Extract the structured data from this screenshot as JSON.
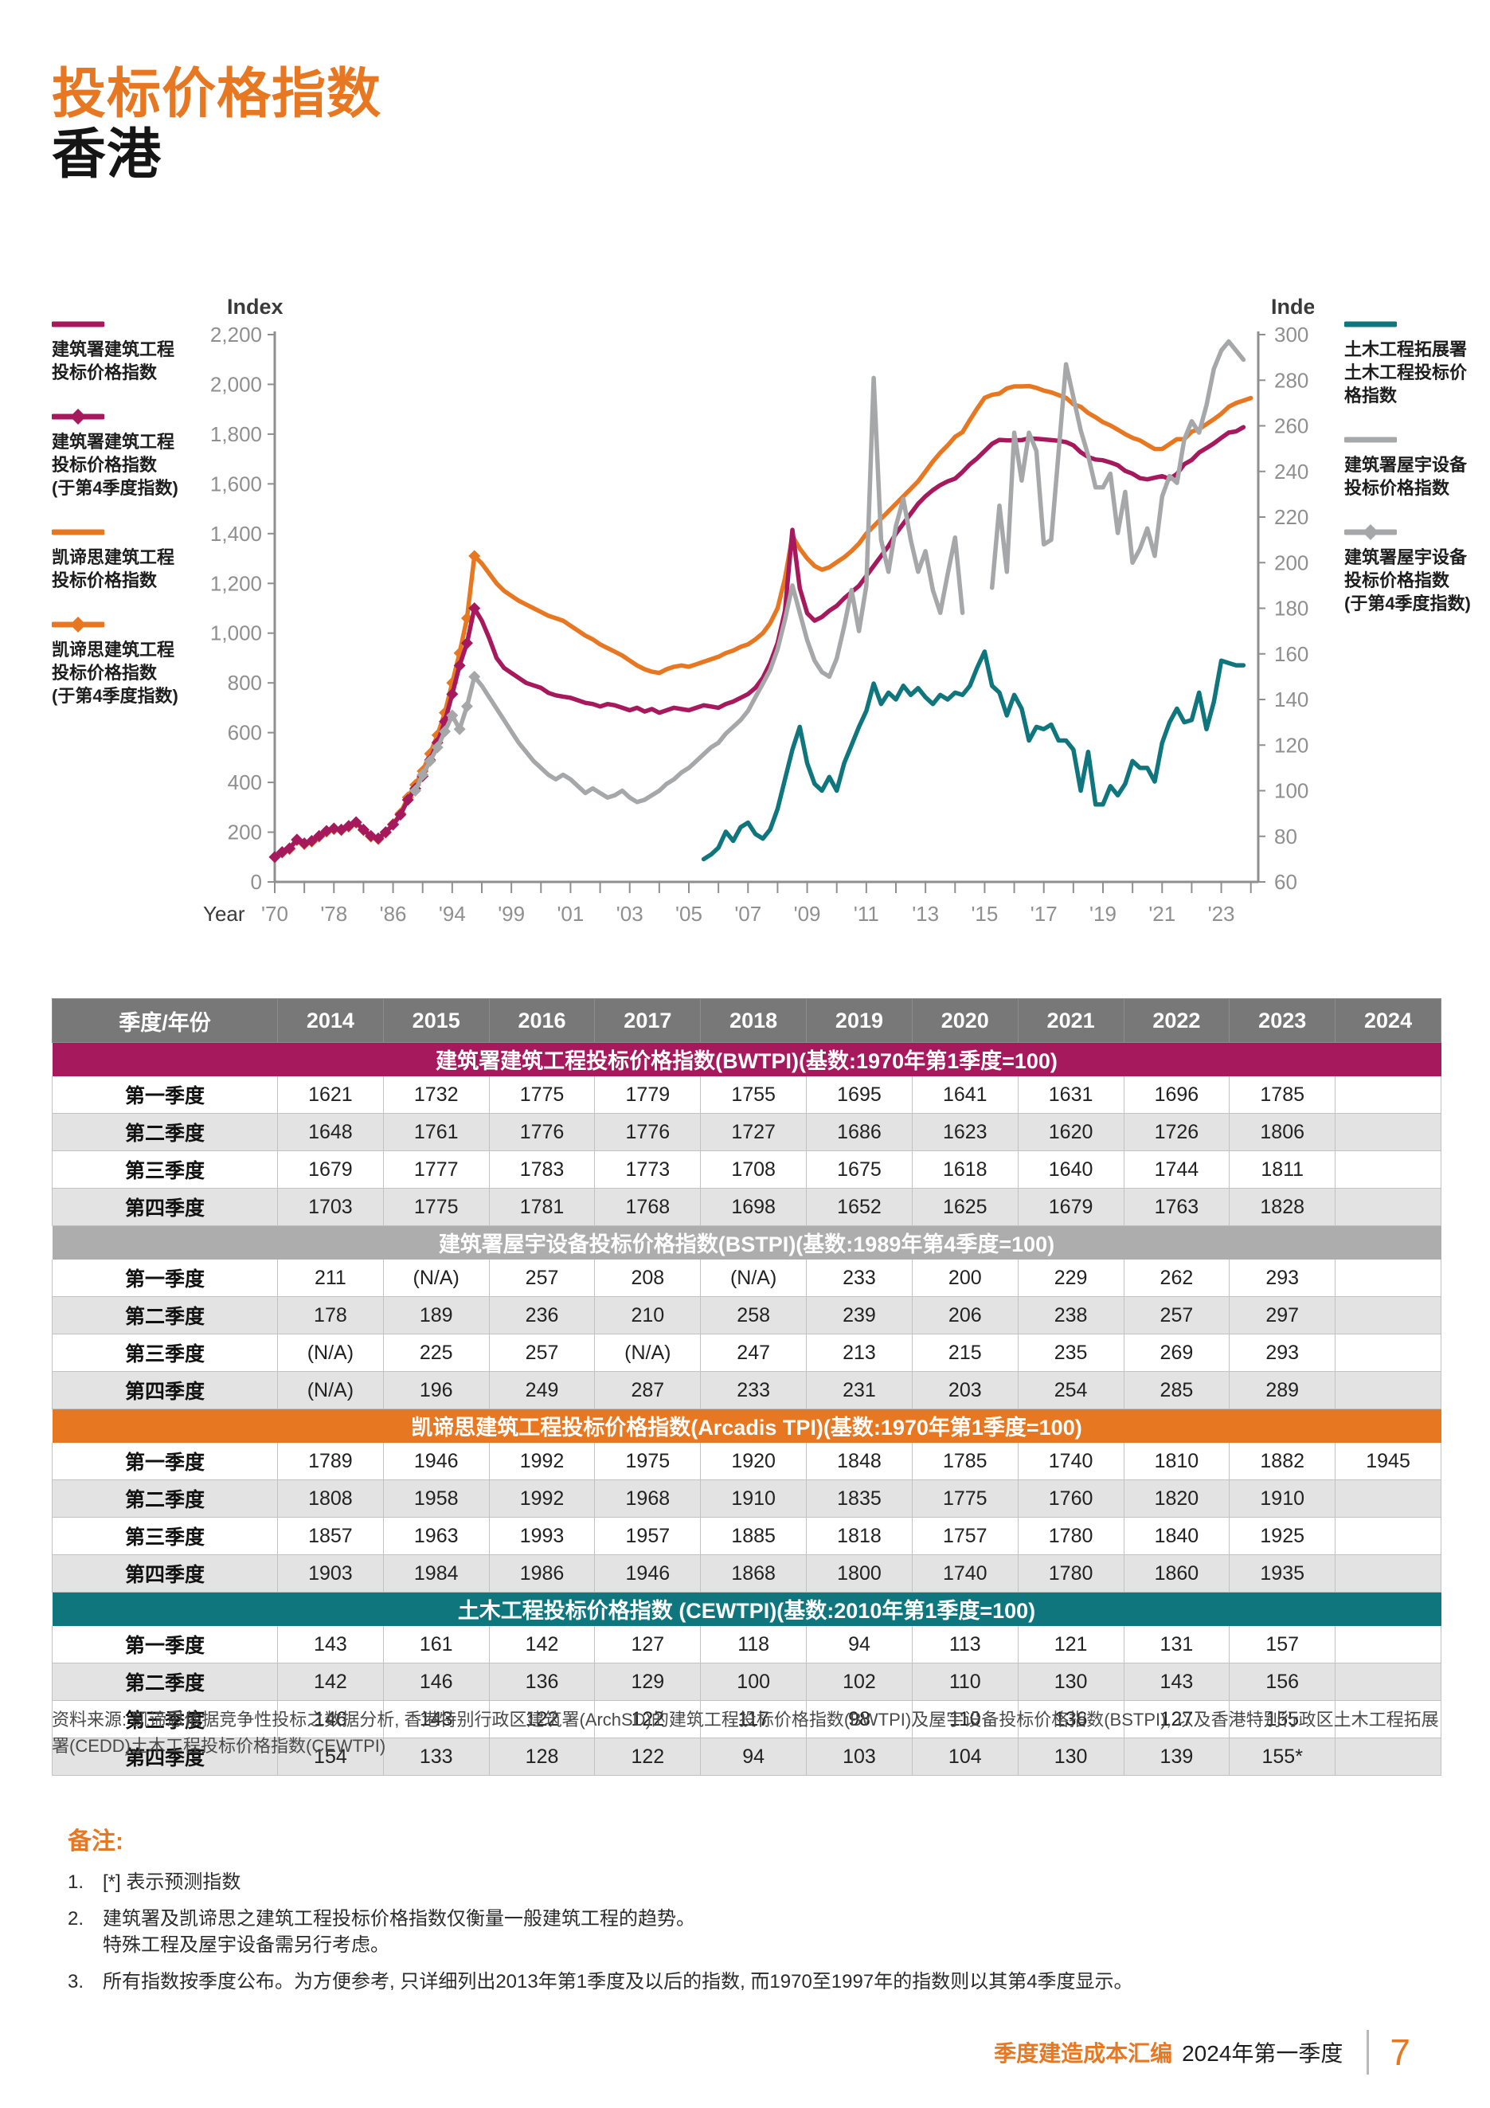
{
  "page": {
    "title_line1": "投标价格指数",
    "title_line2": "香港",
    "footer": {
      "brand": "季度建造成本汇编",
      "edition": "2024年第一季度",
      "page_number": "7"
    }
  },
  "colors": {
    "orange": "#E87722",
    "magenta": "#A6195D",
    "gray": "#A6A7A9",
    "teal": "#0E767C",
    "header_gray": "#787878",
    "band_gray": "#ADADAD",
    "axis_text": "#8F8F8F"
  },
  "chart": {
    "left_axis": {
      "label": "Index",
      "min": 0,
      "max": 2200,
      "step": 200
    },
    "right_axis": {
      "label": "Index",
      "min": 60,
      "max": 300,
      "step": 20
    },
    "x_axis": {
      "label": "Year",
      "tick_labels": [
        "'70",
        "'78",
        "'86",
        "'94",
        "'99",
        "'01",
        "'03",
        "'05",
        "'07",
        "'09",
        "'11",
        "'13",
        "'15",
        "'17",
        "'19",
        "'21",
        "'23"
      ]
    },
    "legend_left": [
      {
        "label": "建筑署建筑工程\n投标价格指数",
        "color": "#A6195D",
        "swatch": "line"
      },
      {
        "label": "建筑署建筑工程\n投标价格指数\n(于第4季度指数)",
        "color": "#A6195D",
        "swatch": "line-diamond"
      },
      {
        "label": "凯谛思建筑工程\n投标价格指数",
        "color": "#E87722",
        "swatch": "line"
      },
      {
        "label": "凯谛思建筑工程\n投标价格指数\n(于第4季度指数)",
        "color": "#E87722",
        "swatch": "line-diamond"
      }
    ],
    "legend_right": [
      {
        "label": "土木工程拓展署\n土木工程投标价\n格指数",
        "color": "#0E767C",
        "swatch": "line"
      },
      {
        "label": "建筑署屋宇设备\n投标价格指数",
        "color": "#A6A7A9",
        "swatch": "line"
      },
      {
        "label": "建筑署屋宇设备\n投标价格指数\n(于第4季度指数)",
        "color": "#A6A7A9",
        "swatch": "line-diamond"
      }
    ]
  },
  "chart_data": {
    "type": "line",
    "note": "1970-1997 shown as Q4 annual points (diamond markers), quarterly thereafter",
    "left_axis_range": [
      0,
      2200
    ],
    "right_axis_range": [
      60,
      300
    ],
    "series": [
      {
        "name": "凯谛思建筑工程投标价格指数 (Arcadis TPI)",
        "color": "#E87722",
        "axis": "left",
        "marker": "diamond",
        "annual_q4": {
          "start": 1970,
          "values": [
            100,
            118,
            132,
            168,
            152,
            162,
            182,
            202,
            212,
            208,
            222,
            238,
            208,
            182,
            172,
            198,
            232,
            275,
            340,
            390,
            445,
            515,
            590,
            680,
            800,
            920,
            1060,
            1310
          ]
        },
        "quarterly": {
          "start": 1998,
          "values": [
            1280,
            1240,
            1200,
            1170,
            1150,
            1130,
            1115,
            1100,
            1085,
            1070,
            1060,
            1050,
            1030,
            1010,
            990,
            975,
            955,
            940,
            925,
            910,
            890,
            870,
            855,
            845,
            840,
            855,
            865,
            870,
            865,
            875,
            885,
            895,
            905,
            920,
            930,
            945,
            955,
            975,
            1000,
            1040,
            1100,
            1220,
            1390,
            1340,
            1300,
            1270,
            1255,
            1265,
            1285,
            1305,
            1330,
            1360,
            1400,
            1430,
            1460,
            1490,
            1520,
            1550,
            1580,
            1610,
            1650,
            1690,
            1725,
            1755,
            1789,
            1808,
            1857,
            1903,
            1946,
            1958,
            1963,
            1984,
            1992,
            1992,
            1993,
            1986,
            1975,
            1968,
            1957,
            1946,
            1920,
            1910,
            1885,
            1868,
            1848,
            1835,
            1818,
            1800,
            1785,
            1775,
            1757,
            1740,
            1740,
            1760,
            1780,
            1780,
            1810,
            1820,
            1840,
            1860,
            1882,
            1910,
            1925,
            1935,
            1945
          ]
        }
      },
      {
        "name": "建筑署建筑工程投标价格指数 (BWTPI)",
        "color": "#A6195D",
        "axis": "left",
        "marker": "diamond",
        "annual_q4": {
          "start": 1970,
          "values": [
            100,
            120,
            135,
            170,
            155,
            165,
            185,
            205,
            215,
            210,
            225,
            240,
            210,
            185,
            175,
            200,
            230,
            270,
            330,
            375,
            425,
            490,
            560,
            645,
            755,
            870,
            960,
            1100
          ]
        },
        "quarterly": {
          "start": 1998,
          "values": [
            1050,
            980,
            900,
            860,
            840,
            820,
            800,
            790,
            780,
            760,
            750,
            745,
            740,
            730,
            720,
            715,
            705,
            715,
            710,
            700,
            690,
            700,
            685,
            695,
            680,
            690,
            700,
            695,
            690,
            700,
            710,
            705,
            700,
            715,
            725,
            740,
            755,
            780,
            820,
            880,
            960,
            1090,
            1415,
            1180,
            1080,
            1050,
            1065,
            1090,
            1110,
            1140,
            1165,
            1190,
            1230,
            1270,
            1310,
            1350,
            1400,
            1440,
            1480,
            1520,
            1550,
            1575,
            1595,
            1610,
            1621,
            1648,
            1679,
            1703,
            1732,
            1761,
            1777,
            1775,
            1775,
            1776,
            1783,
            1781,
            1779,
            1776,
            1773,
            1768,
            1755,
            1727,
            1708,
            1698,
            1695,
            1686,
            1675,
            1652,
            1641,
            1623,
            1618,
            1625,
            1631,
            1620,
            1640,
            1679,
            1696,
            1726,
            1744,
            1763,
            1785,
            1806,
            1811,
            1828
          ]
        }
      },
      {
        "name": "建筑署屋宇设备投标价格指数 (BSTPI)",
        "color": "#A6A7A9",
        "axis": "right",
        "marker": "diamond",
        "annual_q4": {
          "start": 1989,
          "values": [
            100,
            107,
            113,
            119,
            126,
            133,
            127,
            137,
            150
          ]
        },
        "quarterly": {
          "start": 1998,
          "values": [
            146,
            141,
            136,
            131,
            126,
            121,
            117,
            113,
            110,
            107,
            105,
            107,
            105,
            102,
            99,
            101,
            99,
            97,
            98,
            100,
            97,
            95,
            96,
            98,
            100,
            103,
            105,
            108,
            110,
            113,
            116,
            119,
            121,
            125,
            128,
            131,
            135,
            141,
            147,
            153,
            162,
            175,
            190,
            178,
            166,
            157,
            152,
            150,
            158,
            172,
            188,
            170,
            190,
            281,
            210,
            196,
            216,
            228,
            210,
            196,
            205,
            188,
            178,
            195,
            211,
            178,
            null,
            null,
            null,
            189,
            225,
            196,
            257,
            236,
            257,
            249,
            208,
            210,
            null,
            287,
            null,
            258,
            247,
            233,
            233,
            239,
            213,
            231,
            200,
            206,
            215,
            203,
            229,
            238,
            235,
            254,
            262,
            257,
            269,
            285,
            293,
            297,
            293,
            289
          ]
        }
      },
      {
        "name": "土木工程拓展署土木工程投标价格指数 (CEWTPI)",
        "color": "#0E767C",
        "axis": "right",
        "marker": "none",
        "quarterly": {
          "start": 2005.5,
          "values": [
            70,
            72,
            75,
            82,
            78,
            84,
            86,
            81,
            79,
            83,
            92,
            105,
            118,
            128,
            112,
            103,
            100,
            106,
            100,
            112,
            120,
            128,
            135,
            147,
            138,
            143,
            140,
            146,
            142,
            145,
            141,
            138,
            142,
            140,
            143,
            142,
            146,
            154,
            161,
            146,
            143,
            133,
            142,
            136,
            122,
            128,
            127,
            129,
            122,
            122,
            118,
            100,
            117,
            94,
            94,
            102,
            98,
            103,
            113,
            110,
            110,
            104,
            121,
            130,
            136,
            130,
            131,
            143,
            127,
            139,
            157,
            156,
            155,
            155
          ]
        }
      }
    ]
  },
  "table": {
    "columns": [
      "季度/年份",
      "2014",
      "2015",
      "2016",
      "2017",
      "2018",
      "2019",
      "2020",
      "2021",
      "2022",
      "2023",
      "2024"
    ],
    "sections": [
      {
        "title": "建筑署建筑工程投标价格指数(BWTPI)(基数:1970年第1季度=100)",
        "color": "#A6195D",
        "rows": [
          {
            "label": "第一季度",
            "values": [
              "1621",
              "1732",
              "1775",
              "1779",
              "1755",
              "1695",
              "1641",
              "1631",
              "1696",
              "1785",
              ""
            ]
          },
          {
            "label": "第二季度",
            "values": [
              "1648",
              "1761",
              "1776",
              "1776",
              "1727",
              "1686",
              "1623",
              "1620",
              "1726",
              "1806",
              ""
            ]
          },
          {
            "label": "第三季度",
            "values": [
              "1679",
              "1777",
              "1783",
              "1773",
              "1708",
              "1675",
              "1618",
              "1640",
              "1744",
              "1811",
              ""
            ]
          },
          {
            "label": "第四季度",
            "values": [
              "1703",
              "1775",
              "1781",
              "1768",
              "1698",
              "1652",
              "1625",
              "1679",
              "1763",
              "1828",
              ""
            ]
          }
        ]
      },
      {
        "title": "建筑署屋宇设备投标价格指数(BSTPI)(基数:1989年第4季度=100)",
        "color": "#ADADAD",
        "rows": [
          {
            "label": "第一季度",
            "values": [
              "211",
              "(N/A)",
              "257",
              "208",
              "(N/A)",
              "233",
              "200",
              "229",
              "262",
              "293",
              ""
            ]
          },
          {
            "label": "第二季度",
            "values": [
              "178",
              "189",
              "236",
              "210",
              "258",
              "239",
              "206",
              "238",
              "257",
              "297",
              ""
            ]
          },
          {
            "label": "第三季度",
            "values": [
              "(N/A)",
              "225",
              "257",
              "(N/A)",
              "247",
              "213",
              "215",
              "235",
              "269",
              "293",
              ""
            ]
          },
          {
            "label": "第四季度",
            "values": [
              "(N/A)",
              "196",
              "249",
              "287",
              "233",
              "231",
              "203",
              "254",
              "285",
              "289",
              ""
            ]
          }
        ]
      },
      {
        "title": "凯谛思建筑工程投标价格指数(Arcadis TPI)(基数:1970年第1季度=100)",
        "color": "#E87722",
        "rows": [
          {
            "label": "第一季度",
            "values": [
              "1789",
              "1946",
              "1992",
              "1975",
              "1920",
              "1848",
              "1785",
              "1740",
              "1810",
              "1882",
              "1945"
            ]
          },
          {
            "label": "第二季度",
            "values": [
              "1808",
              "1958",
              "1992",
              "1968",
              "1910",
              "1835",
              "1775",
              "1760",
              "1820",
              "1910",
              ""
            ]
          },
          {
            "label": "第三季度",
            "values": [
              "1857",
              "1963",
              "1993",
              "1957",
              "1885",
              "1818",
              "1757",
              "1780",
              "1840",
              "1925",
              ""
            ]
          },
          {
            "label": "第四季度",
            "values": [
              "1903",
              "1984",
              "1986",
              "1946",
              "1868",
              "1800",
              "1740",
              "1780",
              "1860",
              "1935",
              ""
            ]
          }
        ]
      },
      {
        "title": "土木工程投标价格指数 (CEWTPI)(基数:2010年第1季度=100)",
        "color": "#0E767C",
        "rows": [
          {
            "label": "第一季度",
            "values": [
              "143",
              "161",
              "142",
              "127",
              "118",
              "94",
              "113",
              "121",
              "131",
              "157",
              ""
            ]
          },
          {
            "label": "第二季度",
            "values": [
              "142",
              "146",
              "136",
              "129",
              "100",
              "102",
              "110",
              "130",
              "143",
              "156",
              ""
            ]
          },
          {
            "label": "第三季度",
            "values": [
              "146",
              "143",
              "122",
              "122",
              "117",
              "98",
              "110",
              "136",
              "127",
              "155",
              ""
            ]
          },
          {
            "label": "第四季度",
            "values": [
              "154",
              "133",
              "128",
              "122",
              "94",
              "103",
              "104",
              "130",
              "139",
              "155*",
              ""
            ]
          }
        ]
      }
    ]
  },
  "source": {
    "text": "资料来源: 凯谛思依据竞争性投标之数据分析, 香港特别行政区建筑署(ArchSD)的建筑工程投标价格指数(BWTPI)及屋宇设备投标价格指数(BSTPI), 以及香港特别行政区土木工程拓展署(CEDD)土木工程投标价格指数(CEWTPI)"
  },
  "notes": {
    "heading": "备注:",
    "items": [
      "[*] 表示预测指数",
      "建筑署及凯谛思之建筑工程投标价格指数仅衡量一般建筑工程的趋势。\n特殊工程及屋宇设备需另行考虑。",
      "所有指数按季度公布。为方便参考, 只详细列出2013年第1季度及以后的指数, 而1970至1997年的指数则以其第4季度显示。"
    ]
  }
}
